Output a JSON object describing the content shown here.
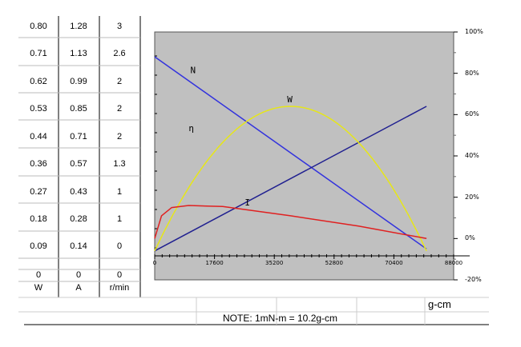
{
  "table": {
    "rows": [
      {
        "w": "0.80",
        "a": "1.28",
        "r": "3"
      },
      {
        "w": "0.71",
        "a": "1.13",
        "r": "2.6"
      },
      {
        "w": "0.62",
        "a": "0.99",
        "r": "2"
      },
      {
        "w": "0.53",
        "a": "0.85",
        "r": "2"
      },
      {
        "w": "0.44",
        "a": "0.71",
        "r": "2"
      },
      {
        "w": "0.36",
        "a": "0.57",
        "r": "1.3"
      },
      {
        "w": "0.27",
        "a": "0.43",
        "r": "1"
      },
      {
        "w": "0.18",
        "a": "0.28",
        "r": "1"
      },
      {
        "w": "0.09",
        "a": "0.14",
        "r": "0"
      },
      {
        "w": "0",
        "a": "0",
        "r": "0"
      }
    ],
    "units": {
      "w": "W",
      "a": "A",
      "r": "r/min"
    }
  },
  "note": "NOTE: 1mN-m = 10.2g-cm",
  "x_unit": "g-cm",
  "chart_data": {
    "type": "line",
    "x_ticks": [
      "0",
      "17600",
      "35200",
      "52800",
      "70400",
      "88000"
    ],
    "xlim": [
      0,
      88000
    ],
    "y_right_ticks": [
      "100%",
      "80%",
      "60%",
      "40%",
      "20%",
      "0%",
      "-20%"
    ],
    "y_right_lim": [
      -20,
      100
    ],
    "plot_background": "#c0c0c0",
    "series": [
      {
        "name": "N",
        "color": "#3333dd",
        "x": [
          0,
          80000
        ],
        "y": [
          88,
          -5
        ]
      },
      {
        "name": "I",
        "color": "#202090",
        "x": [
          0,
          80000
        ],
        "y": [
          -6,
          64
        ]
      },
      {
        "name": "W",
        "color": "#e6e619",
        "x": [
          0,
          10000,
          20000,
          30000,
          40000,
          50000,
          60000,
          70000,
          80000
        ],
        "y": [
          -6,
          31,
          53,
          63,
          64,
          58,
          44,
          22,
          -6
        ]
      },
      {
        "name": "η",
        "color": "#e02020",
        "x": [
          0,
          2000,
          5000,
          10000,
          20000,
          40000,
          60000,
          80000
        ],
        "y": [
          0,
          11,
          15,
          16,
          15.5,
          11,
          6,
          0
        ]
      }
    ],
    "labels": [
      {
        "text": "N",
        "x": 10500,
        "y": 80
      },
      {
        "text": "W",
        "x": 39000,
        "y": 66
      },
      {
        "text": "η",
        "x": 10000,
        "y": 52
      },
      {
        "text": "I",
        "x": 26500,
        "y": 16
      }
    ],
    "grid": false
  }
}
